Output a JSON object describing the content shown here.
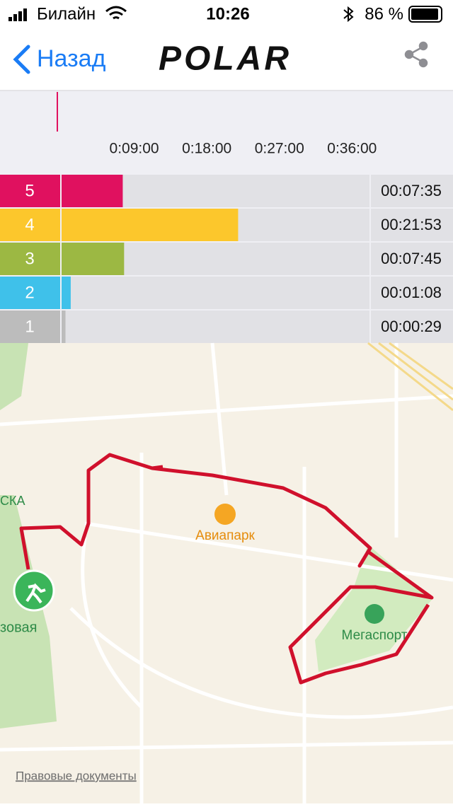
{
  "status_bar": {
    "carrier": "Билайн",
    "time": "10:26",
    "battery": "86 %"
  },
  "nav": {
    "back": "Назад",
    "logo": "POLAR"
  },
  "chart_data": {
    "type": "bar",
    "orientation": "horizontal",
    "categories": [
      "5",
      "4",
      "3",
      "2",
      "1"
    ],
    "values": [
      455,
      1313,
      465,
      68,
      29
    ],
    "value_labels": [
      "00:07:35",
      "00:21:53",
      "00:07:45",
      "00:01:08",
      "00:00:29"
    ],
    "colors": [
      "#e0115f",
      "#fcc72c",
      "#9cb843",
      "#3fc1ea",
      "#bcbcbc"
    ],
    "xlim": [
      0,
      2290
    ],
    "xticks": [
      {
        "value": 540,
        "label": "0:09:00"
      },
      {
        "value": 1080,
        "label": "0:18:00"
      },
      {
        "value": 1620,
        "label": "0:27:00"
      },
      {
        "value": 2160,
        "label": "0:36:00"
      }
    ]
  },
  "map": {
    "labels": [
      "Авиапарк",
      "Мегаспорт",
      "СКА",
      "зовая"
    ],
    "legal": "Правовые документы"
  }
}
